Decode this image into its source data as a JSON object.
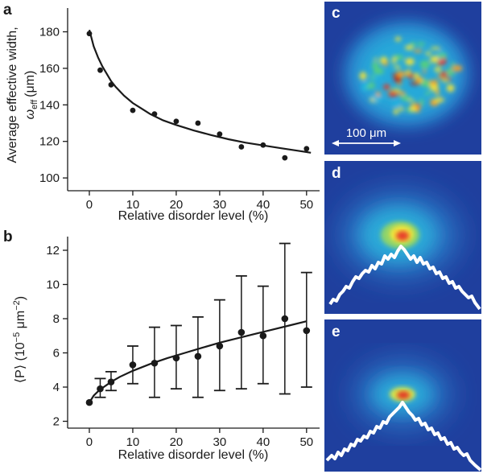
{
  "panel_labels": {
    "a": "a",
    "b": "b",
    "c": "c",
    "d": "d",
    "e": "e"
  },
  "scale_bar": {
    "label": "100 μm"
  },
  "colors": {
    "axis": "#1a1a1a",
    "background_blue": "#1f3f9e",
    "profile_line": "#ffffff"
  },
  "chart_data": [
    {
      "id": "a",
      "type": "scatter",
      "title": "",
      "xlabel": "Relative disorder level (%)",
      "ylabel_line1": "Average effective width,",
      "ylabel_symbol": "ω",
      "ylabel_sub": "eff",
      "ylabel_unit": "(μm)",
      "xlim": [
        -5,
        53
      ],
      "ylim": [
        93,
        193
      ],
      "xticks": [
        0,
        10,
        20,
        30,
        40,
        50
      ],
      "yticks": [
        100,
        120,
        140,
        160,
        180
      ],
      "points": {
        "x": [
          0,
          2.5,
          5,
          10,
          15,
          20,
          25,
          30,
          35,
          40,
          45,
          50
        ],
        "y": [
          179,
          159,
          151,
          137,
          135,
          131,
          130,
          124,
          117,
          118,
          111,
          116
        ]
      },
      "fit": {
        "x": [
          0,
          1,
          2,
          3,
          4,
          5,
          6,
          8,
          10,
          12,
          14,
          17,
          20,
          24,
          28,
          32,
          36,
          40,
          44,
          48,
          51
        ],
        "y": [
          181,
          172,
          166,
          161,
          157,
          153,
          150,
          145,
          141,
          138,
          135,
          131.5,
          129,
          126,
          123.5,
          121.2,
          119.3,
          117.8,
          116.3,
          114.9,
          113.8
        ]
      }
    },
    {
      "id": "b",
      "type": "scatter",
      "title": "",
      "xlabel": "Relative disorder level (%)",
      "ylabel_base": "⟨P⟩ (10",
      "ylabel_exp1": "−5",
      "ylabel_mid": " μm",
      "ylabel_exp2": "−2",
      "ylabel_end": ")",
      "xlim": [
        -5,
        53
      ],
      "ylim": [
        1.6,
        12.8
      ],
      "xticks": [
        0,
        10,
        20,
        30,
        40,
        50
      ],
      "yticks": [
        2,
        4,
        6,
        8,
        10,
        12
      ],
      "points": {
        "x": [
          0,
          2.5,
          5,
          10,
          15,
          20,
          25,
          30,
          35,
          40,
          45,
          50
        ],
        "y": [
          3.1,
          3.9,
          4.3,
          5.3,
          5.4,
          5.7,
          5.8,
          6.4,
          7.2,
          7.0,
          8.0,
          7.3
        ],
        "err_low": [
          3.1,
          3.4,
          3.8,
          4.2,
          3.4,
          3.9,
          3.4,
          3.8,
          3.9,
          4.2,
          3.6,
          4.0
        ],
        "err_high": [
          3.1,
          4.5,
          4.9,
          6.4,
          7.5,
          7.6,
          8.1,
          9.1,
          10.5,
          9.9,
          12.4,
          10.7
        ]
      },
      "fit": {
        "x": [
          0,
          1,
          2,
          3,
          5,
          7,
          10,
          14,
          18,
          22,
          26,
          30,
          34,
          38,
          42,
          46,
          50
        ],
        "y": [
          3.1,
          3.5,
          3.75,
          3.95,
          4.3,
          4.6,
          4.95,
          5.35,
          5.7,
          6.0,
          6.3,
          6.6,
          6.85,
          7.1,
          7.35,
          7.6,
          7.85
        ]
      }
    }
  ]
}
